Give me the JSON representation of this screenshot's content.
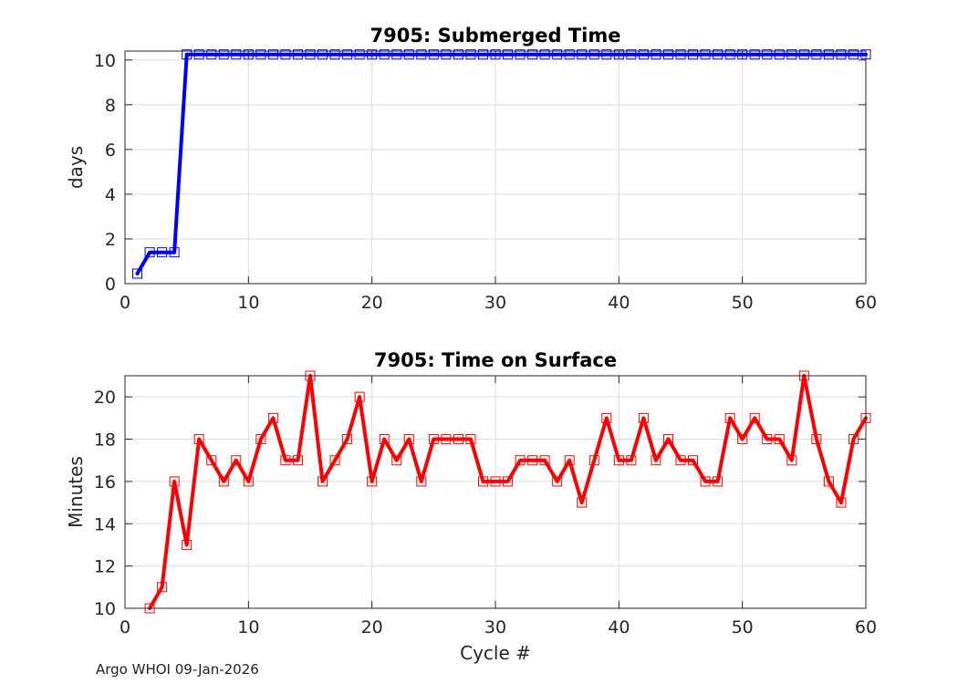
{
  "footer": "Argo WHOI 09-Jan-2026",
  "colors": {
    "submerged": "#0000ff",
    "surface": "#ff0000",
    "axis": "#262626",
    "grid": "#dddddd"
  },
  "chart_data": [
    {
      "type": "line",
      "title": "7905: Submerged Time",
      "xlabel": "",
      "ylabel": "days",
      "xlim": [
        0,
        60
      ],
      "ylim": [
        0,
        10.4
      ],
      "xticks": [
        "0",
        "10",
        "20",
        "30",
        "40",
        "50",
        "60"
      ],
      "yticks": [
        "0",
        "2",
        "4",
        "6",
        "8",
        "10"
      ],
      "grid": true,
      "marker": "square",
      "series": [
        {
          "name": "Submerged Time",
          "color": "#0000ff",
          "x": [
            1,
            2,
            3,
            4,
            5,
            6,
            7,
            8,
            9,
            10,
            11,
            12,
            13,
            14,
            15,
            16,
            17,
            18,
            19,
            20,
            21,
            22,
            23,
            24,
            25,
            26,
            27,
            28,
            29,
            30,
            31,
            32,
            33,
            34,
            35,
            36,
            37,
            38,
            39,
            40,
            41,
            42,
            43,
            44,
            45,
            46,
            47,
            48,
            49,
            50,
            51,
            52,
            53,
            54,
            55,
            56,
            57,
            58,
            59,
            60
          ],
          "values": [
            0.45,
            1.4,
            1.4,
            1.4,
            10.25,
            10.25,
            10.25,
            10.25,
            10.25,
            10.25,
            10.25,
            10.25,
            10.25,
            10.25,
            10.25,
            10.25,
            10.25,
            10.25,
            10.25,
            10.25,
            10.25,
            10.25,
            10.25,
            10.25,
            10.25,
            10.25,
            10.25,
            10.25,
            10.25,
            10.25,
            10.25,
            10.25,
            10.25,
            10.25,
            10.25,
            10.25,
            10.25,
            10.25,
            10.25,
            10.25,
            10.25,
            10.25,
            10.25,
            10.25,
            10.25,
            10.25,
            10.25,
            10.25,
            10.25,
            10.25,
            10.25,
            10.25,
            10.25,
            10.25,
            10.25,
            10.25,
            10.25,
            10.25,
            10.25,
            10.25
          ]
        }
      ]
    },
    {
      "type": "line",
      "title": "7905: Time on Surface",
      "xlabel": "Cycle #",
      "ylabel": "Minutes",
      "xlim": [
        0,
        60
      ],
      "ylim": [
        10,
        21
      ],
      "xticks": [
        "0",
        "10",
        "20",
        "30",
        "40",
        "50",
        "60"
      ],
      "yticks": [
        "10",
        "12",
        "14",
        "16",
        "18",
        "20"
      ],
      "grid": true,
      "marker": "square",
      "series": [
        {
          "name": "Time on Surface",
          "color": "#ff0000",
          "x": [
            2,
            3,
            4,
            5,
            6,
            7,
            8,
            9,
            10,
            11,
            12,
            13,
            14,
            15,
            16,
            17,
            18,
            19,
            20,
            21,
            22,
            23,
            24,
            25,
            26,
            27,
            28,
            29,
            30,
            31,
            32,
            33,
            34,
            35,
            36,
            37,
            38,
            39,
            40,
            41,
            42,
            43,
            44,
            45,
            46,
            47,
            48,
            49,
            50,
            51,
            52,
            53,
            54,
            55,
            56,
            57,
            58,
            59,
            60
          ],
          "values": [
            10,
            11,
            16,
            13,
            18,
            17,
            16,
            17,
            16,
            18,
            19,
            17,
            17,
            21,
            16,
            17,
            18,
            20,
            16,
            18,
            17,
            18,
            16,
            18,
            18,
            18,
            18,
            16,
            16,
            16,
            17,
            17,
            17,
            16,
            17,
            15,
            17,
            19,
            17,
            17,
            19,
            17,
            18,
            17,
            17,
            16,
            16,
            19,
            18,
            19,
            18,
            18,
            17,
            21,
            18,
            16,
            15,
            18,
            19
          ]
        }
      ]
    }
  ]
}
